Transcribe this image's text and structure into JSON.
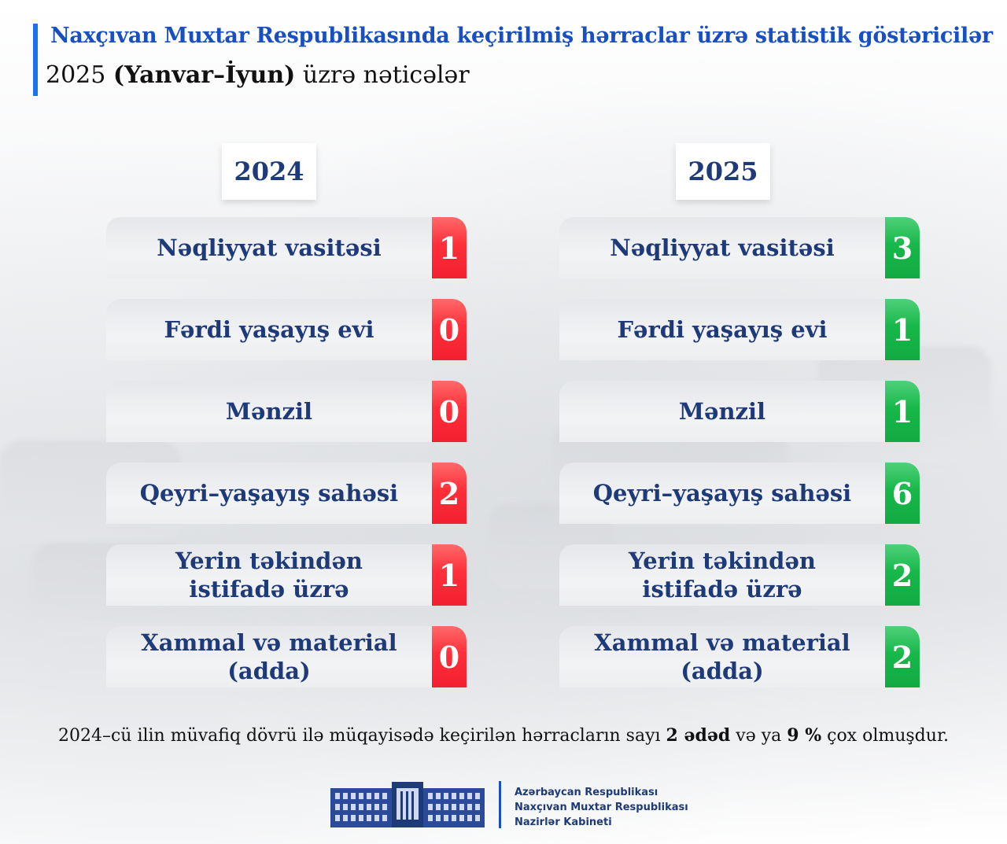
{
  "header": {
    "title": "Naxçıvan Muxtar Respublikasında keçirilmiş hərraclar üzrə statistik göstəricilər",
    "subtitle_prefix": "2025 ",
    "subtitle_bold": "(Yanvar–İyun)",
    "subtitle_suffix": " üzrə nəticələr"
  },
  "columns": [
    {
      "year": "2024",
      "color": "#f32030",
      "rows": [
        {
          "label": "Nəqliyyat vasitəsi",
          "value": "1"
        },
        {
          "label": "Fərdi yaşayış evi",
          "value": "0"
        },
        {
          "label": "Mənzil",
          "value": "0"
        },
        {
          "label": "Qeyri–yaşayış sahəsi",
          "value": "2"
        },
        {
          "label": "Yerin təkindən istifadə üzrə",
          "value": "1"
        },
        {
          "label": "Xammal və material (adda)",
          "value": "0"
        }
      ]
    },
    {
      "year": "2025",
      "color": "#12aa42",
      "rows": [
        {
          "label": "Nəqliyyat vasitəsi",
          "value": "3"
        },
        {
          "label": "Fərdi yaşayış evi",
          "value": "1"
        },
        {
          "label": "Mənzil",
          "value": "1"
        },
        {
          "label": "Qeyri–yaşayış sahəsi",
          "value": "6"
        },
        {
          "label": "Yerin təkindən istifadə üzrə",
          "value": "2"
        },
        {
          "label": "Xammal və material (adda)",
          "value": "2"
        }
      ]
    }
  ],
  "note": {
    "part1": "2024–cü ilin müvafiq dövrü ilə müqayisədə keçirilən hərracların sayı ",
    "bold1": "2 ədəd",
    "part2": " və ya ",
    "bold2": "9 %",
    "part3": " çox olmuşdur."
  },
  "logo": {
    "line1": "Azərbaycan Respublikası",
    "line2": "Naxçıvan Muxtar Respublikası",
    "line3": "Nazirlər Kabineti"
  }
}
